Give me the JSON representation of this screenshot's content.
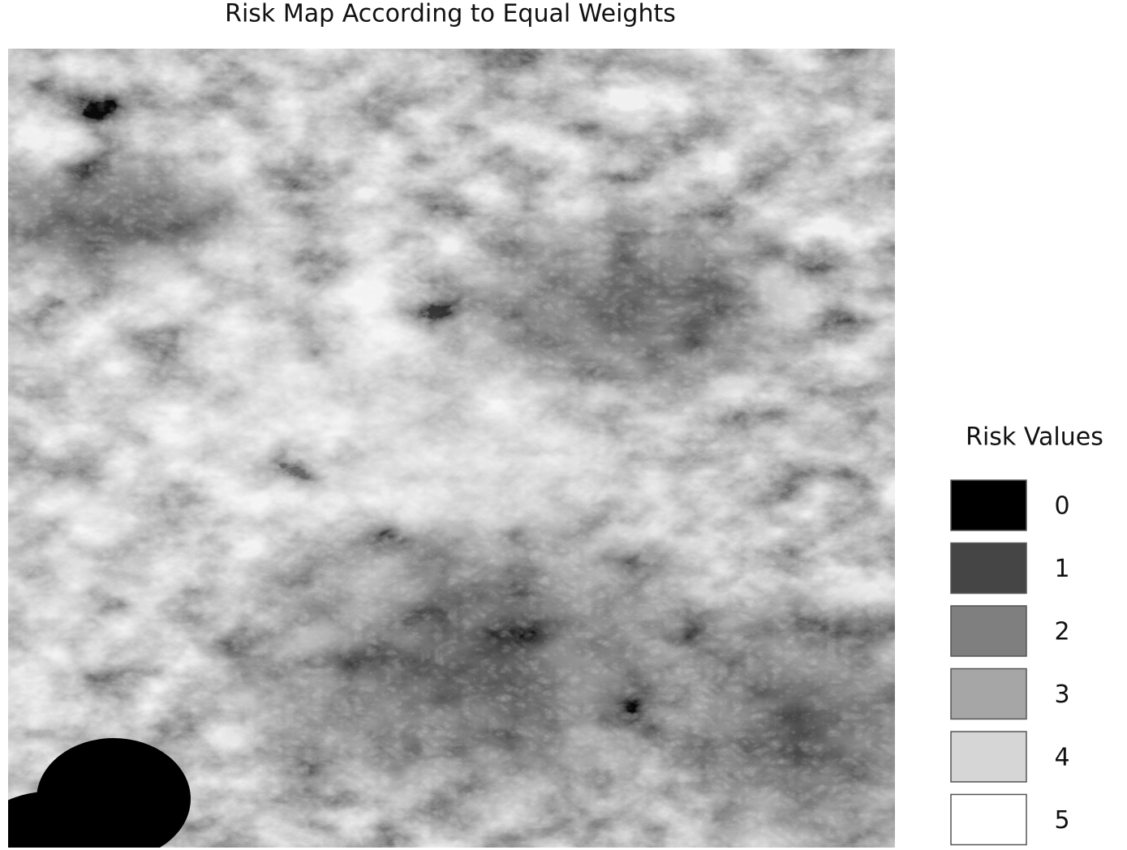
{
  "title": "Risk Map According to Equal Weights",
  "legend": {
    "title": "Risk Values",
    "items": [
      {
        "label": "0",
        "color": "#000000"
      },
      {
        "label": "1",
        "color": "#454545"
      },
      {
        "label": "2",
        "color": "#7f7f7f"
      },
      {
        "label": "3",
        "color": "#a6a6a6"
      },
      {
        "label": "4",
        "color": "#d6d6d6"
      },
      {
        "label": "5",
        "color": "#ffffff"
      }
    ]
  }
}
